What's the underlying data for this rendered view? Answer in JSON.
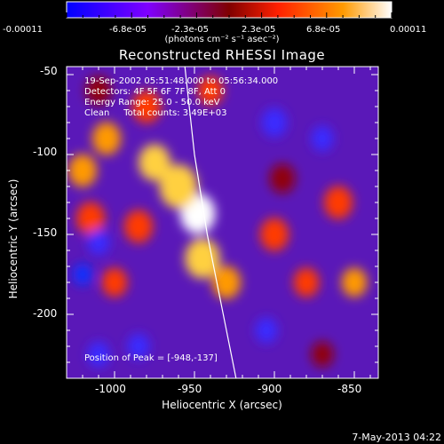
{
  "colorbar": {
    "tick_labels": [
      "-0.00011",
      "-6.8e-05",
      "-2.3e-05",
      "2.3e-05",
      "6.8e-05",
      "0.00011"
    ],
    "unit": "(photons cm⁻² s⁻¹ asec⁻²)"
  },
  "info": {
    "time": "19-Sep-2002 05:51:48.000 to 05:56:34.000",
    "detectors": "Detectors: 4F 5F 6F 7F 8F, Att 0",
    "energy": "Energy Range: 25.0 - 50.0 keV",
    "clean": "Clean     Total counts: 3.49E+03"
  },
  "peak_label": "Position of Peak = [-948,-137]",
  "footer": "7-May-2013 04:22",
  "chart_data": {
    "type": "heatmap",
    "title": "Reconstructed RHESSI Image",
    "xlabel": "Heliocentric X (arcsec)",
    "ylabel": "Heliocentric Y (arcsec)",
    "xlim": [
      -1030,
      -835
    ],
    "ylim": [
      -240,
      -45
    ],
    "x_ticks": [
      -1000,
      -950,
      -900,
      -850
    ],
    "y_ticks": [
      -50,
      -100,
      -150,
      -200
    ],
    "x_tick_labels": [
      "-1000",
      "-950",
      "-900",
      "-850"
    ],
    "y_tick_labels": [
      "-50",
      "-100",
      "-150",
      "-200"
    ],
    "colorbar_range": [
      -0.00011,
      0.00011
    ],
    "colormap": [
      "#0000ff",
      "#7f00ff",
      "#800000",
      "#ff2000",
      "#ff9a00",
      "#ffffff"
    ],
    "peak_position": [
      -948,
      -137
    ],
    "sources": [
      {
        "x": -948,
        "y": -137,
        "r": 11,
        "v": 1.0
      },
      {
        "x": -960,
        "y": -120,
        "r": 12,
        "v": 0.8
      },
      {
        "x": -975,
        "y": -105,
        "r": 10,
        "v": 0.75
      },
      {
        "x": -1005,
        "y": -90,
        "r": 9,
        "v": 0.7
      },
      {
        "x": -1020,
        "y": -110,
        "r": 9,
        "v": 0.6
      },
      {
        "x": -1015,
        "y": -140,
        "r": 9,
        "v": 0.55
      },
      {
        "x": -985,
        "y": -145,
        "r": 9,
        "v": 0.5
      },
      {
        "x": -945,
        "y": -165,
        "r": 11,
        "v": 0.8
      },
      {
        "x": -930,
        "y": -180,
        "r": 9,
        "v": 0.65
      },
      {
        "x": -1000,
        "y": -180,
        "r": 8,
        "v": 0.45
      },
      {
        "x": -980,
        "y": -70,
        "r": 9,
        "v": 0.55
      },
      {
        "x": -940,
        "y": -60,
        "r": 8,
        "v": 0.5
      },
      {
        "x": -900,
        "y": -150,
        "r": 9,
        "v": 0.55
      },
      {
        "x": -895,
        "y": -115,
        "r": 8,
        "v": 0.4
      },
      {
        "x": -880,
        "y": -180,
        "r": 8,
        "v": 0.5
      },
      {
        "x": -860,
        "y": -130,
        "r": 9,
        "v": 0.55
      },
      {
        "x": -850,
        "y": -180,
        "r": 8,
        "v": 0.6
      },
      {
        "x": -870,
        "y": -225,
        "r": 7,
        "v": 0.35
      },
      {
        "x": -1010,
        "y": -60,
        "r": 8,
        "v": 0.4
      },
      {
        "x": -1010,
        "y": -155,
        "r": 7,
        "v": -0.5
      },
      {
        "x": -1020,
        "y": -175,
        "r": 6,
        "v": -0.6
      },
      {
        "x": -1010,
        "y": -225,
        "r": 7,
        "v": -0.5
      },
      {
        "x": -985,
        "y": -220,
        "r": 7,
        "v": -0.4
      },
      {
        "x": -900,
        "y": -80,
        "r": 8,
        "v": -0.3
      },
      {
        "x": -870,
        "y": -90,
        "r": 7,
        "v": -0.3
      },
      {
        "x": -905,
        "y": -210,
        "r": 7,
        "v": -0.3
      }
    ],
    "limb_curve": [
      [
        -956,
        -45
      ],
      [
        -950,
        -100
      ],
      [
        -942,
        -150
      ],
      [
        -934,
        -190
      ],
      [
        -924,
        -240
      ]
    ]
  }
}
